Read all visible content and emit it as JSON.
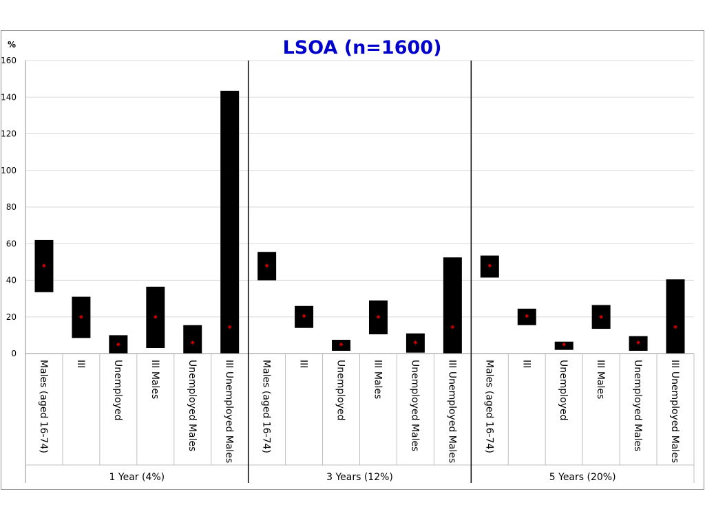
{
  "chart_data": {
    "type": "bar",
    "title": "LSOA (n=1600)",
    "ylabel": "%",
    "ylim": [
      0,
      160
    ],
    "yticks": [
      0,
      20,
      40,
      60,
      80,
      100,
      120,
      140,
      160
    ],
    "grid": true,
    "colors": {
      "bar": "#000000",
      "point": "#c00000",
      "title": "#0000cc",
      "gridline": "#d9d9d9"
    },
    "groups": [
      {
        "label": "1 Year (4%)",
        "items": [
          {
            "label": "Males (aged 16-74)",
            "low": 33.5,
            "high": 62,
            "point": 48
          },
          {
            "label": "III",
            "low": 8.5,
            "high": 31,
            "point": 20
          },
          {
            "label": "Unemployed",
            "low": 0,
            "high": 10,
            "point": 5
          },
          {
            "label": "III Males",
            "low": 3,
            "high": 36.5,
            "point": 20
          },
          {
            "label": "Unemployed Males",
            "low": 0,
            "high": 15.5,
            "point": 6
          },
          {
            "label": "III Unemployed Males",
            "low": 0,
            "high": 143.5,
            "point": 14.5
          }
        ]
      },
      {
        "label": "3 Years (12%)",
        "items": [
          {
            "label": "Males (aged 16-74)",
            "low": 40,
            "high": 55.5,
            "point": 48
          },
          {
            "label": "III",
            "low": 14,
            "high": 26,
            "point": 20.5
          },
          {
            "label": "Unemployed",
            "low": 1.5,
            "high": 7.5,
            "point": 5
          },
          {
            "label": "III Males",
            "low": 10.5,
            "high": 29,
            "point": 20
          },
          {
            "label": "Unemployed Males",
            "low": 0.5,
            "high": 11,
            "point": 6
          },
          {
            "label": "III Unemployed Males",
            "low": 0,
            "high": 52.5,
            "point": 14.5
          }
        ]
      },
      {
        "label": "5 Years (20%)",
        "items": [
          {
            "label": "Males (aged 16-74)",
            "low": 41.5,
            "high": 53.5,
            "point": 48
          },
          {
            "label": "III",
            "low": 15.5,
            "high": 24.5,
            "point": 20.5
          },
          {
            "label": "Unemployed",
            "low": 2,
            "high": 6.5,
            "point": 5
          },
          {
            "label": "III Males",
            "low": 13.5,
            "high": 26.5,
            "point": 20
          },
          {
            "label": "Unemployed Males",
            "low": 1.5,
            "high": 9.5,
            "point": 6
          },
          {
            "label": "III Unemployed Males",
            "low": 0,
            "high": 40.5,
            "point": 14.5
          }
        ]
      }
    ]
  }
}
